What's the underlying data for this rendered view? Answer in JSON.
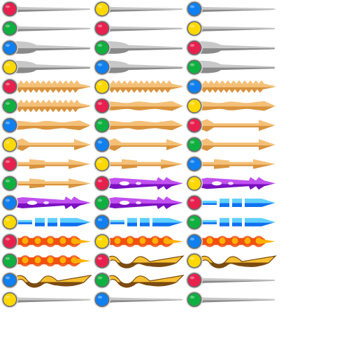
{
  "sheet": {
    "background": "#ffffff",
    "gem_colors": {
      "red": "#e8204e",
      "green": "#10b040",
      "blue": "#1080f0",
      "yellow": "#ffd800"
    },
    "blade_palettes": {
      "silver": {
        "light": "#c8c8c8",
        "dark": "#8a8a8a"
      },
      "bronze": {
        "light": "#f4c078",
        "dark": "#d8923c"
      },
      "violet": {
        "light": "#c050f0",
        "dark": "#7a10c0"
      },
      "azure": {
        "light": "#60d0ff",
        "dark": "#1070f0"
      },
      "flame": {
        "light": "#ffb000",
        "dark": "#f05010"
      },
      "gold": {
        "light": "#f8c030",
        "dark": "#7a4a10"
      }
    },
    "columns": [
      {
        "items": [
          {
            "icon": "silver-plain-blade-red-gem-icon",
            "gem": "red",
            "blade": "plain",
            "palette": "silver"
          },
          {
            "icon": "silver-plain-blade-green-gem-icon",
            "gem": "green",
            "blade": "plain",
            "palette": "silver"
          },
          {
            "icon": "silver-broad-blade-blue-gem-icon",
            "gem": "blue",
            "blade": "broad",
            "palette": "silver"
          },
          {
            "icon": "silver-broad-blade-yellow-gem-icon",
            "gem": "yellow",
            "blade": "broad",
            "palette": "silver"
          },
          {
            "icon": "bronze-serrated-blade-red-gem-icon",
            "gem": "red",
            "blade": "serrated",
            "palette": "bronze"
          },
          {
            "icon": "bronze-serrated-blade-green-gem-icon",
            "gem": "green",
            "blade": "serrated",
            "palette": "bronze"
          },
          {
            "icon": "bronze-wave-blade-blue-gem-icon",
            "gem": "blue",
            "blade": "wave",
            "palette": "bronze"
          },
          {
            "icon": "bronze-arrow-blade-yellow-gem-icon",
            "gem": "yellow",
            "blade": "arrow",
            "palette": "bronze"
          },
          {
            "icon": "bronze-block-blade-red-gem-icon",
            "gem": "red",
            "blade": "block",
            "palette": "bronze"
          },
          {
            "icon": "bronze-block-blade-green-gem-icon",
            "gem": "green",
            "blade": "block",
            "palette": "bronze"
          },
          {
            "icon": "violet-trident-blade-blue-gem-icon",
            "gem": "blue",
            "blade": "trident",
            "palette": "violet"
          },
          {
            "icon": "azure-segmented-blade-yellow-gem-icon",
            "gem": "yellow",
            "blade": "segmented",
            "palette": "azure"
          },
          {
            "icon": "flame-blade-red-gem-icon",
            "gem": "red",
            "blade": "flame",
            "palette": "flame"
          },
          {
            "icon": "flame-blade-green-gem-icon",
            "gem": "green",
            "blade": "flame",
            "palette": "flame"
          },
          {
            "icon": "gold-serpent-blade-blue-gem-icon",
            "gem": "blue",
            "blade": "serpent",
            "palette": "gold"
          },
          {
            "icon": "silver-plain-blade-yellow-gem-icon",
            "gem": "yellow",
            "blade": "plain",
            "palette": "silver"
          }
        ]
      },
      {
        "items": [
          {
            "icon": "silver-plain-blade-yellow-gem-icon",
            "gem": "yellow",
            "blade": "plain",
            "palette": "silver"
          },
          {
            "icon": "silver-plain-blade-red-gem-icon",
            "gem": "red",
            "blade": "plain",
            "palette": "silver"
          },
          {
            "icon": "silver-broad-blade-green-gem-icon",
            "gem": "green",
            "blade": "broad",
            "palette": "silver"
          },
          {
            "icon": "silver-broad-blade-blue-gem-icon",
            "gem": "blue",
            "blade": "broad",
            "palette": "silver"
          },
          {
            "icon": "bronze-serrated-blade-yellow-gem-icon",
            "gem": "yellow",
            "blade": "serrated",
            "palette": "bronze"
          },
          {
            "icon": "bronze-wave-blade-red-gem-icon",
            "gem": "red",
            "blade": "wave",
            "palette": "bronze"
          },
          {
            "icon": "bronze-wave-blade-green-gem-icon",
            "gem": "green",
            "blade": "wave",
            "palette": "bronze"
          },
          {
            "icon": "bronze-arrow-blade-blue-gem-icon",
            "gem": "blue",
            "blade": "arrow",
            "palette": "bronze"
          },
          {
            "icon": "bronze-block-blade-yellow-gem-icon",
            "gem": "yellow",
            "blade": "block",
            "palette": "bronze"
          },
          {
            "icon": "violet-trident-blade-red-gem-icon",
            "gem": "red",
            "blade": "trident",
            "palette": "violet"
          },
          {
            "icon": "violet-trident-blade-green-gem-icon",
            "gem": "green",
            "blade": "trident",
            "palette": "violet"
          },
          {
            "icon": "azure-segmented-blade-blue-gem-icon",
            "gem": "blue",
            "blade": "segmented",
            "palette": "azure"
          },
          {
            "icon": "flame-blade-yellow-gem-icon",
            "gem": "yellow",
            "blade": "flame",
            "palette": "flame"
          },
          {
            "icon": "gold-serpent-blade-red-gem-icon",
            "gem": "red",
            "blade": "serpent",
            "palette": "gold"
          },
          {
            "icon": "gold-serpent-blade-green-gem-icon",
            "gem": "green",
            "blade": "serpent",
            "palette": "gold"
          },
          {
            "icon": "silver-plain-blade-blue-gem-icon",
            "gem": "blue",
            "blade": "plain",
            "palette": "silver"
          }
        ]
      },
      {
        "items": [
          {
            "icon": "silver-plain-blade-blue-gem-icon",
            "gem": "blue",
            "blade": "plain",
            "palette": "silver"
          },
          {
            "icon": "silver-plain-blade-yellow-gem-icon",
            "gem": "yellow",
            "blade": "plain",
            "palette": "silver"
          },
          {
            "icon": "silver-broad-blade-red-gem-icon",
            "gem": "red",
            "blade": "broad",
            "palette": "silver"
          },
          {
            "icon": "silver-broad-blade-green-gem-icon",
            "gem": "green",
            "blade": "broad",
            "palette": "silver"
          },
          {
            "icon": "bronze-serrated-blade-blue-gem-icon",
            "gem": "blue",
            "blade": "serrated",
            "palette": "bronze"
          },
          {
            "icon": "bronze-wave-blade-yellow-gem-icon",
            "gem": "yellow",
            "blade": "wave",
            "palette": "bronze"
          },
          {
            "icon": "bronze-arrow-blade-red-gem-icon",
            "gem": "red",
            "blade": "arrow",
            "palette": "bronze"
          },
          {
            "icon": "bronze-arrow-blade-green-gem-icon",
            "gem": "green",
            "blade": "arrow",
            "palette": "bronze"
          },
          {
            "icon": "bronze-block-blade-blue-gem-icon",
            "gem": "blue",
            "blade": "block",
            "palette": "bronze"
          },
          {
            "icon": "violet-trident-blade-yellow-gem-icon",
            "gem": "yellow",
            "blade": "trident",
            "palette": "violet"
          },
          {
            "icon": "azure-segmented-blade-red-gem-icon",
            "gem": "red",
            "blade": "segmented",
            "palette": "azure"
          },
          {
            "icon": "azure-segmented-blade-green-gem-icon",
            "gem": "green",
            "blade": "segmented",
            "palette": "azure"
          },
          {
            "icon": "flame-blade-blue-gem-icon",
            "gem": "blue",
            "blade": "flame",
            "palette": "flame"
          },
          {
            "icon": "gold-serpent-blade-yellow-gem-icon",
            "gem": "yellow",
            "blade": "serpent",
            "palette": "gold"
          },
          {
            "icon": "silver-plain-blade-red-gem-icon",
            "gem": "red",
            "blade": "plain",
            "palette": "silver"
          },
          {
            "icon": "silver-plain-blade-green-gem-icon",
            "gem": "green",
            "blade": "plain",
            "palette": "silver"
          }
        ]
      }
    ]
  }
}
